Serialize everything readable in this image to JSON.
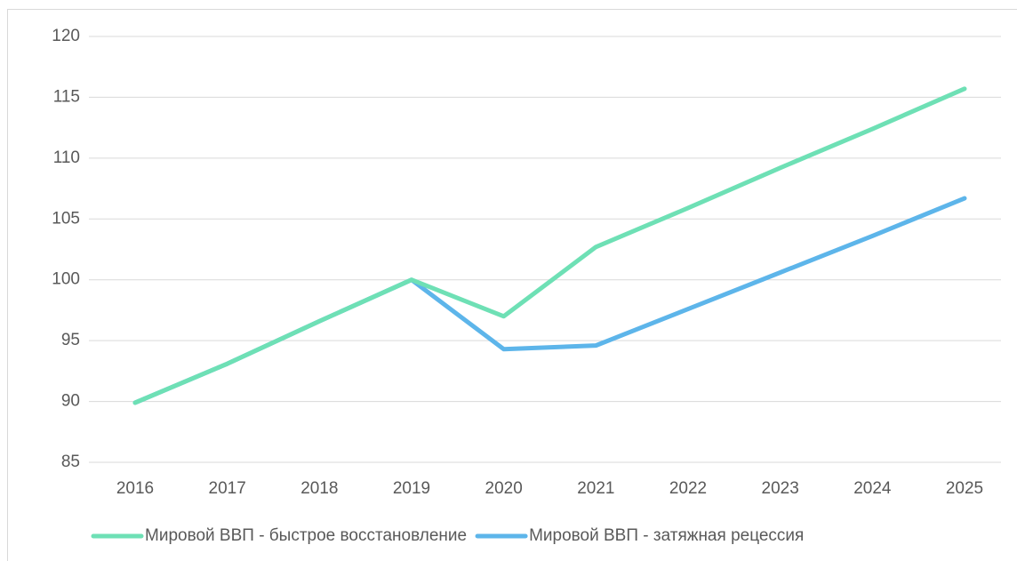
{
  "chart_data": {
    "type": "line",
    "categories": [
      "2016",
      "2017",
      "2018",
      "2019",
      "2020",
      "2021",
      "2022",
      "2023",
      "2024",
      "2025"
    ],
    "series": [
      {
        "name": "Мировой ВВП - быстрое восстановление",
        "color": "#6ee0b5",
        "values": [
          89.9,
          93.1,
          96.6,
          100,
          97.0,
          102.7,
          105.9,
          109.2,
          112.4,
          115.7
        ]
      },
      {
        "name": "Мировой ВВП - затяжная рецессия",
        "color": "#5db5ea",
        "values": [
          89.9,
          93.1,
          96.6,
          100,
          94.3,
          94.6,
          97.6,
          100.6,
          103.6,
          106.7
        ]
      }
    ],
    "ylim": [
      85,
      120
    ],
    "yticks": [
      85,
      90,
      95,
      100,
      105,
      110,
      115,
      120
    ],
    "grid": true,
    "legend": "bottom"
  }
}
